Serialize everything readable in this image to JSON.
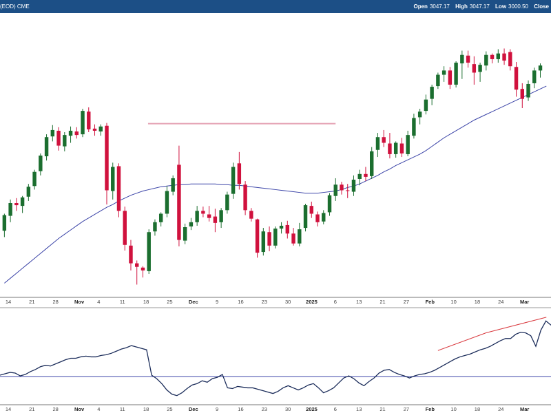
{
  "header": {
    "symbol": "(EOD) CME",
    "fields": [
      {
        "label": "Open",
        "value": "3047.17"
      },
      {
        "label": "High",
        "value": "3047.17"
      },
      {
        "label": "Low",
        "value": "3000.50"
      },
      {
        "label": "Close",
        "value": ""
      }
    ]
  },
  "colors": {
    "up": "#1b6e2f",
    "down": "#d0113d",
    "ma_short": "#3a43a7",
    "ma_long": "#d9393e",
    "header_bg": "#1c4f86",
    "resistance": "#e5a2b4"
  },
  "chart_data": {
    "type": "candlestick",
    "price_scale": {
      "min": 2700,
      "max": 3100
    },
    "x_axis": {
      "ticks": [
        "14",
        "21",
        "28",
        "Nov",
        "4",
        "11",
        "18",
        "25",
        "Dec",
        "9",
        "16",
        "23",
        "30",
        "2025",
        "6",
        "13",
        "21",
        "27",
        "Feb",
        "10",
        "18",
        "24",
        "Mar"
      ],
      "bold": [
        "Nov",
        "Dec",
        "2025",
        "Feb",
        "Mar"
      ]
    },
    "candles": [
      [
        2794,
        2818,
        2785,
        2816
      ],
      [
        2815,
        2838,
        2806,
        2833
      ],
      [
        2833,
        2840,
        2822,
        2830
      ],
      [
        2829,
        2843,
        2819,
        2841
      ],
      [
        2842,
        2860,
        2836,
        2856
      ],
      [
        2857,
        2880,
        2852,
        2877
      ],
      [
        2878,
        2903,
        2872,
        2900
      ],
      [
        2899,
        2930,
        2893,
        2926
      ],
      [
        2927,
        2943,
        2920,
        2936
      ],
      [
        2935,
        2940,
        2907,
        2914
      ],
      [
        2913,
        2933,
        2906,
        2929
      ],
      [
        2928,
        2941,
        2918,
        2935
      ],
      [
        2934,
        2940,
        2924,
        2929
      ],
      [
        2930,
        2966,
        2926,
        2963
      ],
      [
        2962,
        2968,
        2933,
        2937
      ],
      [
        2938,
        2944,
        2928,
        2935
      ],
      [
        2934,
        2944,
        2928,
        2941
      ],
      [
        2942,
        2946,
        2831,
        2851
      ],
      [
        2850,
        2890,
        2838,
        2884
      ],
      [
        2885,
        2889,
        2813,
        2822
      ],
      [
        2822,
        2828,
        2766,
        2774
      ],
      [
        2773,
        2781,
        2738,
        2748
      ],
      [
        2748,
        2752,
        2718,
        2743
      ],
      [
        2742,
        2744,
        2728,
        2738
      ],
      [
        2737,
        2796,
        2733,
        2792
      ],
      [
        2793,
        2810,
        2787,
        2806
      ],
      [
        2806,
        2820,
        2800,
        2818
      ],
      [
        2818,
        2857,
        2813,
        2850
      ],
      [
        2849,
        2872,
        2844,
        2868
      ],
      [
        2887,
        2914,
        2772,
        2781
      ],
      [
        2780,
        2804,
        2775,
        2799
      ],
      [
        2800,
        2812,
        2795,
        2806
      ],
      [
        2806,
        2829,
        2801,
        2822
      ],
      [
        2822,
        2828,
        2813,
        2818
      ],
      [
        2817,
        2829,
        2807,
        2812
      ],
      [
        2814,
        2825,
        2792,
        2805
      ],
      [
        2806,
        2826,
        2798,
        2823
      ],
      [
        2823,
        2849,
        2818,
        2845
      ],
      [
        2846,
        2890,
        2839,
        2884
      ],
      [
        2889,
        2905,
        2852,
        2860
      ],
      [
        2859,
        2864,
        2816,
        2823
      ],
      [
        2822,
        2826,
        2807,
        2811
      ],
      [
        2810,
        2811,
        2756,
        2763
      ],
      [
        2764,
        2798,
        2759,
        2793
      ],
      [
        2792,
        2800,
        2765,
        2773
      ],
      [
        2773,
        2800,
        2769,
        2797
      ],
      [
        2797,
        2806,
        2790,
        2801
      ],
      [
        2802,
        2808,
        2783,
        2790
      ],
      [
        2790,
        2798,
        2773,
        2776
      ],
      [
        2776,
        2805,
        2772,
        2796
      ],
      [
        2798,
        2832,
        2793,
        2830
      ],
      [
        2829,
        2835,
        2812,
        2818
      ],
      [
        2817,
        2821,
        2800,
        2806
      ],
      [
        2807,
        2823,
        2803,
        2819
      ],
      [
        2820,
        2847,
        2815,
        2844
      ],
      [
        2843,
        2868,
        2836,
        2859
      ],
      [
        2859,
        2863,
        2845,
        2851
      ],
      [
        2851,
        2860,
        2840,
        2850
      ],
      [
        2849,
        2872,
        2843,
        2866
      ],
      [
        2867,
        2880,
        2858,
        2874
      ],
      [
        2874,
        2884,
        2864,
        2870
      ],
      [
        2871,
        2912,
        2867,
        2906
      ],
      [
        2908,
        2932,
        2898,
        2926
      ],
      [
        2926,
        2936,
        2912,
        2918
      ],
      [
        2917,
        2932,
        2896,
        2902
      ],
      [
        2902,
        2920,
        2897,
        2918
      ],
      [
        2917,
        2925,
        2898,
        2903
      ],
      [
        2902,
        2935,
        2899,
        2929
      ],
      [
        2928,
        2959,
        2924,
        2953
      ],
      [
        2954,
        2966,
        2944,
        2962
      ],
      [
        2963,
        2986,
        2958,
        2979
      ],
      [
        2980,
        3000,
        2971,
        2997
      ],
      [
        2998,
        3017,
        2994,
        3014
      ],
      [
        3014,
        3026,
        3004,
        3020
      ],
      [
        3020,
        3025,
        2994,
        3000
      ],
      [
        3000,
        3033,
        2996,
        3031
      ],
      [
        3030,
        3048,
        3008,
        3042
      ],
      [
        3041,
        3048,
        3024,
        3031
      ],
      [
        3029,
        3040,
        3000,
        3017
      ],
      [
        3018,
        3031,
        3004,
        3028
      ],
      [
        3027,
        3047,
        3020,
        3042
      ],
      [
        3042,
        3044,
        3030,
        3036
      ],
      [
        3036,
        3050,
        3031,
        3044
      ],
      [
        3044,
        3051,
        3028,
        3034
      ],
      [
        3046,
        3050,
        3020,
        3026
      ],
      [
        3025,
        3032,
        2983,
        2993
      ],
      [
        2994,
        3002,
        2967,
        2980
      ],
      [
        2982,
        3006,
        2977,
        3001
      ],
      [
        3002,
        3024,
        2995,
        3020
      ],
      [
        3020,
        3030,
        3010,
        3027
      ]
    ],
    "ma_short": [
      2720,
      2727,
      2734,
      2741,
      2748,
      2755,
      2762,
      2769,
      2776,
      2783,
      2789,
      2795,
      2801,
      2807,
      2812,
      2817,
      2822,
      2827,
      2831,
      2836,
      2840,
      2844,
      2847,
      2850,
      2852,
      2854,
      2856,
      2857,
      2858,
      2859,
      2859,
      2860,
      2860,
      2860,
      2860,
      2860,
      2859,
      2859,
      2858,
      2858,
      2857,
      2856,
      2855,
      2854,
      2853,
      2852,
      2851,
      2850,
      2849,
      2848,
      2847,
      2847,
      2847,
      2848,
      2849,
      2850,
      2852,
      2855,
      2857,
      2860,
      2864,
      2868,
      2872,
      2877,
      2881,
      2886,
      2890,
      2894,
      2898,
      2902,
      2907,
      2913,
      2919,
      2925,
      2930,
      2935,
      2940,
      2945,
      2950,
      2954,
      2958,
      2962,
      2966,
      2970,
      2974,
      2978,
      2982,
      2986,
      2990,
      2994,
      2998
    ],
    "ma_long": [
      [
        72,
        2625
      ],
      [
        80,
        2650
      ],
      [
        90,
        2672
      ]
    ],
    "resistance_level": 2945,
    "resistance_range": [
      25,
      55
    ],
    "indicator": {
      "baseline": 0,
      "values": [
        0.2,
        0.4,
        0.6,
        0.5,
        0.1,
        0.3,
        0.7,
        1.0,
        1.4,
        1.6,
        1.5,
        1.8,
        2.1,
        2.4,
        2.6,
        2.6,
        2.8,
        2.9,
        2.8,
        2.8,
        3.0,
        3.1,
        3.3,
        3.6,
        3.9,
        4.1,
        4.4,
        4.2,
        4.0,
        3.8,
        0.2,
        -0.3,
        -1.0,
        -1.9,
        -2.5,
        -2.7,
        -2.3,
        -1.7,
        -1.2,
        -1.0,
        -0.6,
        -0.8,
        -0.3,
        -0.1,
        0.3,
        -1.6,
        -1.7,
        -1.4,
        -1.5,
        -1.6,
        -1.6,
        -1.8,
        -2.0,
        -2.2,
        -2.4,
        -2.1,
        -1.6,
        -1.3,
        -1.6,
        -1.9,
        -1.6,
        -1.2,
        -1.0,
        -1.6,
        -2.3,
        -2.0,
        -1.6,
        -0.9,
        -0.2,
        0.1,
        -0.3,
        -0.9,
        -1.3,
        -0.7,
        -0.2,
        0.5,
        0.9,
        1.0,
        0.6,
        0.3,
        0.1,
        -0.2,
        0.1,
        0.3,
        0.4,
        0.6,
        0.9,
        1.3,
        1.7,
        2.1,
        2.5,
        2.8,
        3.0,
        3.2,
        3.5,
        3.8,
        4.0,
        4.3,
        4.7,
        5.1,
        5.4,
        5.4,
        6.0,
        6.3,
        6.2,
        5.8,
        4.3,
        6.6,
        7.9,
        7.3
      ],
      "range": [
        -4,
        9
      ]
    }
  }
}
